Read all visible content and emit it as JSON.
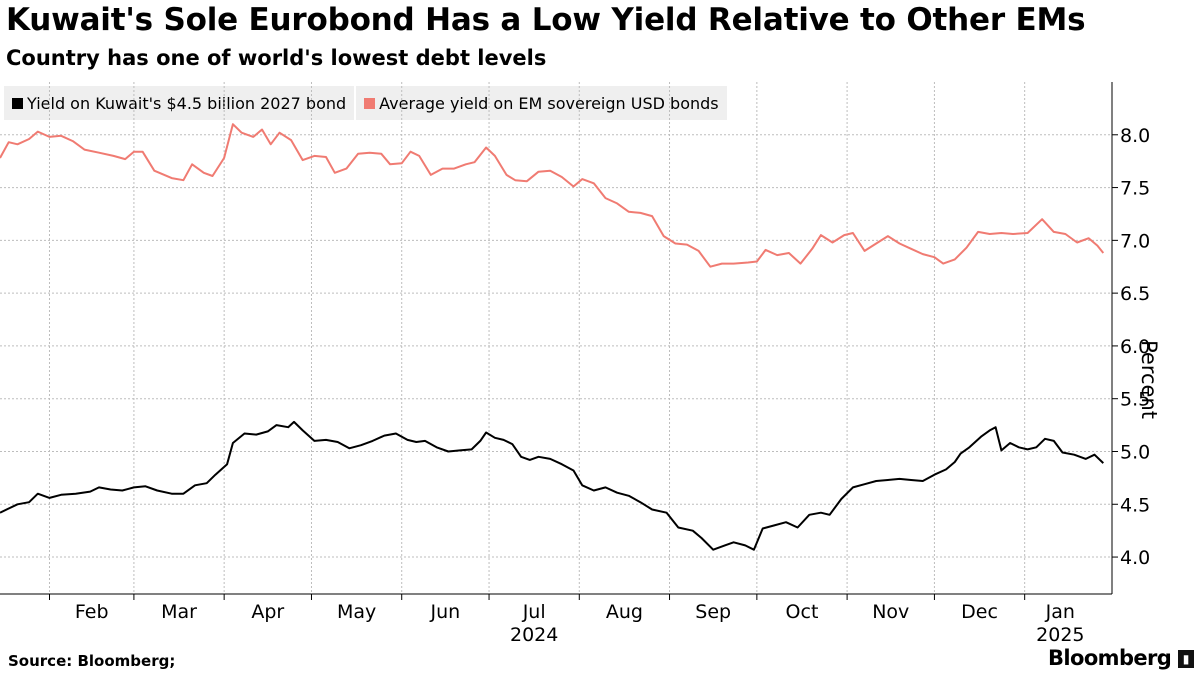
{
  "header": {
    "title": "Kuwait's Sole Eurobond Has a Low Yield Relative to Other EMs",
    "subtitle": "Country has one of world's lowest debt levels"
  },
  "footer": {
    "source": "Source: Bloomberg;",
    "brand": "Bloomberg"
  },
  "colors": {
    "series_kuwait": "#000000",
    "series_em": "#f07b72",
    "grid": "#bdbdbd",
    "legend_bg": "#efefef"
  },
  "chart_data": {
    "type": "line",
    "title": "Kuwait's Sole Eurobond Has a Low Yield Relative to Other EMs",
    "subtitle": "Country has one of world's lowest debt levels",
    "xlabel": "",
    "ylabel": "Percent",
    "ylim": [
      3.65,
      8.5
    ],
    "yticks": [
      4.0,
      4.5,
      5.0,
      5.5,
      6.0,
      6.5,
      7.0,
      7.5,
      8.0
    ],
    "ytick_labels": [
      "4.0",
      "4.5",
      "5.0",
      "5.5",
      "6.0",
      "6.5",
      "7.0",
      "7.5",
      "8.0"
    ],
    "xlim": [
      "2024-01-15",
      "2025-01-31"
    ],
    "month_ticks": [
      {
        "label": "Feb",
        "date": "2024-02-01"
      },
      {
        "label": "Mar",
        "date": "2024-03-01"
      },
      {
        "label": "Apr",
        "date": "2024-04-01"
      },
      {
        "label": "May",
        "date": "2024-05-01"
      },
      {
        "label": "Jun",
        "date": "2024-06-01"
      },
      {
        "label": "Jul",
        "date": "2024-07-01"
      },
      {
        "label": "Aug",
        "date": "2024-08-01"
      },
      {
        "label": "Sep",
        "date": "2024-09-01"
      },
      {
        "label": "Oct",
        "date": "2024-10-01"
      },
      {
        "label": "Nov",
        "date": "2024-11-01"
      },
      {
        "label": "Dec",
        "date": "2024-12-01"
      },
      {
        "label": "Jan",
        "date": "2025-01-01"
      }
    ],
    "year_labels": [
      {
        "label": "2024",
        "date": "2024-07-01"
      },
      {
        "label": "2025",
        "date": "2025-01-01"
      }
    ],
    "legend_placement": "top-left",
    "grid": true,
    "series": [
      {
        "name": "Yield on Kuwait's $4.5 billion 2027 bond",
        "color": "#000000",
        "points": [
          [
            "2024-01-15",
            4.42
          ],
          [
            "2024-01-18",
            4.46
          ],
          [
            "2024-01-21",
            4.5
          ],
          [
            "2024-01-25",
            4.52
          ],
          [
            "2024-01-28",
            4.6
          ],
          [
            "2024-02-01",
            4.56
          ],
          [
            "2024-02-05",
            4.59
          ],
          [
            "2024-02-10",
            4.6
          ],
          [
            "2024-02-15",
            4.62
          ],
          [
            "2024-02-18",
            4.66
          ],
          [
            "2024-02-22",
            4.64
          ],
          [
            "2024-02-26",
            4.63
          ],
          [
            "2024-03-01",
            4.66
          ],
          [
            "2024-03-05",
            4.67
          ],
          [
            "2024-03-09",
            4.63
          ],
          [
            "2024-03-14",
            4.6
          ],
          [
            "2024-03-18",
            4.6
          ],
          [
            "2024-03-22",
            4.68
          ],
          [
            "2024-03-26",
            4.7
          ],
          [
            "2024-03-29",
            4.78
          ],
          [
            "2024-04-02",
            4.88
          ],
          [
            "2024-04-04",
            5.08
          ],
          [
            "2024-04-08",
            5.17
          ],
          [
            "2024-04-12",
            5.16
          ],
          [
            "2024-04-16",
            5.19
          ],
          [
            "2024-04-19",
            5.25
          ],
          [
            "2024-04-23",
            5.23
          ],
          [
            "2024-04-25",
            5.28
          ],
          [
            "2024-04-28",
            5.2
          ],
          [
            "2024-05-02",
            5.1
          ],
          [
            "2024-05-06",
            5.11
          ],
          [
            "2024-05-10",
            5.09
          ],
          [
            "2024-05-14",
            5.03
          ],
          [
            "2024-05-18",
            5.06
          ],
          [
            "2024-05-22",
            5.1
          ],
          [
            "2024-05-26",
            5.15
          ],
          [
            "2024-05-30",
            5.17
          ],
          [
            "2024-06-03",
            5.11
          ],
          [
            "2024-06-06",
            5.09
          ],
          [
            "2024-06-09",
            5.1
          ],
          [
            "2024-06-13",
            5.04
          ],
          [
            "2024-06-17",
            5.0
          ],
          [
            "2024-06-21",
            5.01
          ],
          [
            "2024-06-25",
            5.02
          ],
          [
            "2024-06-28",
            5.1
          ],
          [
            "2024-06-30",
            5.18
          ],
          [
            "2024-07-03",
            5.13
          ],
          [
            "2024-07-06",
            5.11
          ],
          [
            "2024-07-09",
            5.07
          ],
          [
            "2024-07-12",
            4.95
          ],
          [
            "2024-07-15",
            4.92
          ],
          [
            "2024-07-18",
            4.95
          ],
          [
            "2024-07-22",
            4.93
          ],
          [
            "2024-07-26",
            4.88
          ],
          [
            "2024-07-30",
            4.82
          ],
          [
            "2024-08-02",
            4.68
          ],
          [
            "2024-08-06",
            4.63
          ],
          [
            "2024-08-10",
            4.66
          ],
          [
            "2024-08-14",
            4.61
          ],
          [
            "2024-08-18",
            4.58
          ],
          [
            "2024-08-22",
            4.52
          ],
          [
            "2024-08-26",
            4.45
          ],
          [
            "2024-08-31",
            4.42
          ],
          [
            "2024-09-04",
            4.28
          ],
          [
            "2024-09-09",
            4.25
          ],
          [
            "2024-09-12",
            4.18
          ],
          [
            "2024-09-16",
            4.07
          ],
          [
            "2024-09-20",
            4.11
          ],
          [
            "2024-09-23",
            4.14
          ],
          [
            "2024-09-27",
            4.11
          ],
          [
            "2024-09-30",
            4.07
          ],
          [
            "2024-10-03",
            4.27
          ],
          [
            "2024-10-07",
            4.3
          ],
          [
            "2024-10-11",
            4.33
          ],
          [
            "2024-10-15",
            4.28
          ],
          [
            "2024-10-19",
            4.4
          ],
          [
            "2024-10-23",
            4.42
          ],
          [
            "2024-10-26",
            4.4
          ],
          [
            "2024-10-30",
            4.55
          ],
          [
            "2024-11-03",
            4.66
          ],
          [
            "2024-11-07",
            4.69
          ],
          [
            "2024-11-11",
            4.72
          ],
          [
            "2024-11-15",
            4.73
          ],
          [
            "2024-11-19",
            4.74
          ],
          [
            "2024-11-23",
            4.73
          ],
          [
            "2024-11-27",
            4.72
          ],
          [
            "2024-12-01",
            4.78
          ],
          [
            "2024-12-05",
            4.83
          ],
          [
            "2024-12-08",
            4.9
          ],
          [
            "2024-12-10",
            4.98
          ],
          [
            "2024-12-13",
            5.04
          ],
          [
            "2024-12-17",
            5.14
          ],
          [
            "2024-12-20",
            5.2
          ],
          [
            "2024-12-22",
            5.23
          ],
          [
            "2024-12-24",
            5.01
          ],
          [
            "2024-12-27",
            5.08
          ],
          [
            "2024-12-30",
            5.04
          ],
          [
            "2025-01-02",
            5.02
          ],
          [
            "2025-01-05",
            5.04
          ],
          [
            "2025-01-08",
            5.12
          ],
          [
            "2025-01-11",
            5.1
          ],
          [
            "2025-01-14",
            4.99
          ],
          [
            "2025-01-18",
            4.97
          ],
          [
            "2025-01-22",
            4.93
          ],
          [
            "2025-01-25",
            4.97
          ],
          [
            "2025-01-28",
            4.89
          ]
        ]
      },
      {
        "name": "Average yield on EM sovereign USD bonds",
        "color": "#f07b72",
        "points": [
          [
            "2024-01-15",
            7.78
          ],
          [
            "2024-01-18",
            7.93
          ],
          [
            "2024-01-21",
            7.91
          ],
          [
            "2024-01-25",
            7.96
          ],
          [
            "2024-01-28",
            8.03
          ],
          [
            "2024-02-01",
            7.98
          ],
          [
            "2024-02-05",
            7.99
          ],
          [
            "2024-02-09",
            7.94
          ],
          [
            "2024-02-13",
            7.86
          ],
          [
            "2024-02-18",
            7.83
          ],
          [
            "2024-02-23",
            7.8
          ],
          [
            "2024-02-27",
            7.77
          ],
          [
            "2024-03-01",
            7.84
          ],
          [
            "2024-03-04",
            7.84
          ],
          [
            "2024-03-08",
            7.66
          ],
          [
            "2024-03-14",
            7.59
          ],
          [
            "2024-03-18",
            7.57
          ],
          [
            "2024-03-21",
            7.72
          ],
          [
            "2024-03-25",
            7.64
          ],
          [
            "2024-03-28",
            7.61
          ],
          [
            "2024-04-01",
            7.78
          ],
          [
            "2024-04-04",
            8.1
          ],
          [
            "2024-04-07",
            8.02
          ],
          [
            "2024-04-11",
            7.98
          ],
          [
            "2024-04-14",
            8.05
          ],
          [
            "2024-04-17",
            7.91
          ],
          [
            "2024-04-20",
            8.02
          ],
          [
            "2024-04-24",
            7.95
          ],
          [
            "2024-04-28",
            7.76
          ],
          [
            "2024-05-02",
            7.8
          ],
          [
            "2024-05-06",
            7.79
          ],
          [
            "2024-05-09",
            7.64
          ],
          [
            "2024-05-13",
            7.68
          ],
          [
            "2024-05-17",
            7.82
          ],
          [
            "2024-05-21",
            7.83
          ],
          [
            "2024-05-25",
            7.82
          ],
          [
            "2024-05-28",
            7.72
          ],
          [
            "2024-06-01",
            7.73
          ],
          [
            "2024-06-04",
            7.84
          ],
          [
            "2024-06-07",
            7.8
          ],
          [
            "2024-06-11",
            7.62
          ],
          [
            "2024-06-15",
            7.68
          ],
          [
            "2024-06-19",
            7.68
          ],
          [
            "2024-06-23",
            7.72
          ],
          [
            "2024-06-26",
            7.74
          ],
          [
            "2024-06-30",
            7.88
          ],
          [
            "2024-07-03",
            7.8
          ],
          [
            "2024-07-07",
            7.62
          ],
          [
            "2024-07-10",
            7.57
          ],
          [
            "2024-07-14",
            7.56
          ],
          [
            "2024-07-18",
            7.65
          ],
          [
            "2024-07-22",
            7.66
          ],
          [
            "2024-07-26",
            7.6
          ],
          [
            "2024-07-30",
            7.51
          ],
          [
            "2024-08-02",
            7.58
          ],
          [
            "2024-08-06",
            7.54
          ],
          [
            "2024-08-10",
            7.4
          ],
          [
            "2024-08-14",
            7.35
          ],
          [
            "2024-08-18",
            7.27
          ],
          [
            "2024-08-22",
            7.26
          ],
          [
            "2024-08-26",
            7.23
          ],
          [
            "2024-08-30",
            7.04
          ],
          [
            "2024-09-03",
            6.97
          ],
          [
            "2024-09-07",
            6.96
          ],
          [
            "2024-09-11",
            6.9
          ],
          [
            "2024-09-15",
            6.75
          ],
          [
            "2024-09-19",
            6.78
          ],
          [
            "2024-09-23",
            6.78
          ],
          [
            "2024-09-28",
            6.79
          ],
          [
            "2024-10-01",
            6.8
          ],
          [
            "2024-10-04",
            6.91
          ],
          [
            "2024-10-08",
            6.86
          ],
          [
            "2024-10-12",
            6.88
          ],
          [
            "2024-10-16",
            6.78
          ],
          [
            "2024-10-20",
            6.92
          ],
          [
            "2024-10-23",
            7.05
          ],
          [
            "2024-10-27",
            6.98
          ],
          [
            "2024-10-31",
            7.05
          ],
          [
            "2024-11-03",
            7.07
          ],
          [
            "2024-11-07",
            6.9
          ],
          [
            "2024-11-11",
            6.97
          ],
          [
            "2024-11-15",
            7.04
          ],
          [
            "2024-11-19",
            6.97
          ],
          [
            "2024-11-23",
            6.92
          ],
          [
            "2024-11-27",
            6.87
          ],
          [
            "2024-12-01",
            6.84
          ],
          [
            "2024-12-04",
            6.78
          ],
          [
            "2024-12-08",
            6.82
          ],
          [
            "2024-12-12",
            6.93
          ],
          [
            "2024-12-16",
            7.08
          ],
          [
            "2024-12-20",
            7.06
          ],
          [
            "2024-12-24",
            7.07
          ],
          [
            "2024-12-28",
            7.06
          ],
          [
            "2025-01-02",
            7.07
          ],
          [
            "2025-01-07",
            7.2
          ],
          [
            "2025-01-11",
            7.08
          ],
          [
            "2025-01-15",
            7.06
          ],
          [
            "2025-01-19",
            6.98
          ],
          [
            "2025-01-23",
            7.02
          ],
          [
            "2025-01-26",
            6.95
          ],
          [
            "2025-01-28",
            6.88
          ]
        ]
      }
    ]
  }
}
